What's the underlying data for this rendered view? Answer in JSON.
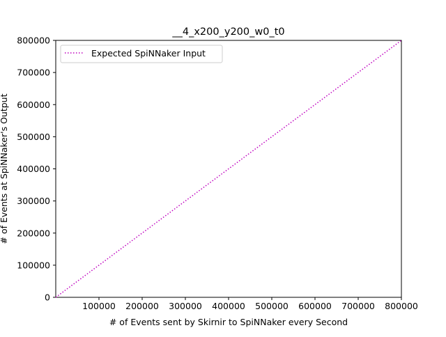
{
  "chart_data": {
    "type": "line",
    "title": "__4_x200_y200_w0_t0",
    "xlabel": "# of Events sent by Skirnir to SpiNNaker every Second",
    "ylabel": "# of Events at SpiNNaker's Output",
    "xlim": [
      0,
      800000
    ],
    "ylim": [
      0,
      800000
    ],
    "x_ticks": [
      100000,
      200000,
      300000,
      400000,
      500000,
      600000,
      700000,
      800000
    ],
    "y_ticks": [
      0,
      100000,
      200000,
      300000,
      400000,
      500000,
      600000,
      700000,
      800000
    ],
    "grid": false,
    "legend": {
      "position": "top-left"
    },
    "series": [
      {
        "name": "Expected SpiNNaker Input",
        "color": "#bf00bf",
        "line_style": "dotted",
        "x": [
          0,
          800000
        ],
        "y": [
          0,
          800000
        ]
      }
    ]
  }
}
